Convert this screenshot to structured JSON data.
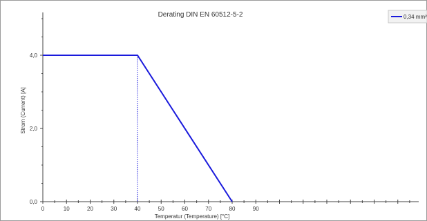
{
  "chart_data": {
    "type": "line",
    "title": "Derating DIN EN 60512-5-2",
    "xlabel": "Temperatur (Temperature) [°C]",
    "ylabel": "Strom (Current) [A]",
    "xlim": [
      0,
      160
    ],
    "ylim": [
      0,
      5.2
    ],
    "x_ticks": [
      0,
      10,
      20,
      30,
      40,
      50,
      60,
      70,
      80,
      90
    ],
    "y_ticks": [
      "0,0",
      "2,0",
      "4,0"
    ],
    "y_tick_values": [
      0,
      2,
      4
    ],
    "grid": false,
    "legend_position": "top-right",
    "series": [
      {
        "name": "0,34 mm²",
        "color": "#1a1adc",
        "x": [
          0,
          40,
          80
        ],
        "y": [
          4.0,
          4.0,
          0.0
        ]
      }
    ],
    "annotations": [
      {
        "type": "vertical-dotted-line",
        "x": 40,
        "y_from": 0,
        "y_to": 4.0,
        "color": "#1a1adc"
      }
    ]
  }
}
